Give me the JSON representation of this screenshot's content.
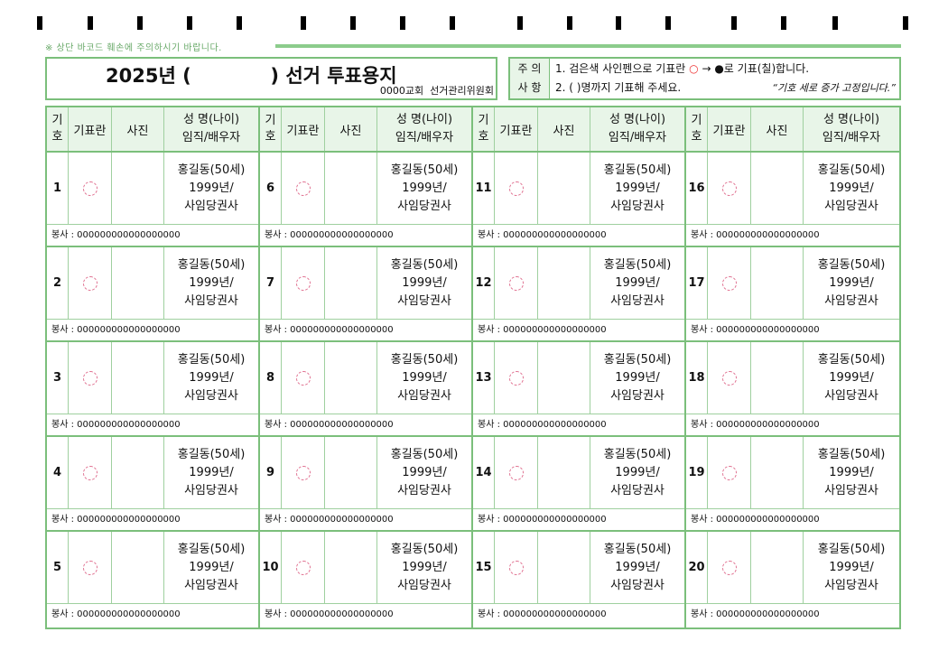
{
  "warning": "※ 상단 바코드 훼손에 주의하시기 바랍니다.",
  "title": "2025년 (            ) 선거 투표용지",
  "organization": "0000교회  선거관리위원회",
  "notice": {
    "label_top": "주 의",
    "label_bottom": "사 항",
    "line1_pre": "1. 검은색 사인펜으로 기표란 ",
    "line1_circle": "○",
    "line1_mid": " → ●로 기표(칠)합니다.",
    "line2": "2. (       )명까지 기표해 주세요.",
    "quote": "“기호 세로 증가 고정입니다.”"
  },
  "header": {
    "num": "기호",
    "mark": "기표란",
    "photo": "사진",
    "name_line1": "성 명(나이)",
    "name_line2": "임직/배우자"
  },
  "colors": {
    "border": "#7bbf7b",
    "header_bg": "#e8f5e8",
    "circle": "#e07090"
  },
  "candidates": [
    {
      "num": "1",
      "name": "홍길동(50세)",
      "year": "1999년/",
      "spouse": "사임당권사",
      "service": "봉사 : 000000000000000000"
    },
    {
      "num": "2",
      "name": "홍길동(50세)",
      "year": "1999년/",
      "spouse": "사임당권사",
      "service": "봉사 : 000000000000000000"
    },
    {
      "num": "3",
      "name": "홍길동(50세)",
      "year": "1999년/",
      "spouse": "사임당권사",
      "service": "봉사 : 000000000000000000"
    },
    {
      "num": "4",
      "name": "홍길동(50세)",
      "year": "1999년/",
      "spouse": "사임당권사",
      "service": "봉사 : 000000000000000000"
    },
    {
      "num": "5",
      "name": "홍길동(50세)",
      "year": "1999년/",
      "spouse": "사임당권사",
      "service": "봉사 : 000000000000000000"
    },
    {
      "num": "6",
      "name": "홍길동(50세)",
      "year": "1999년/",
      "spouse": "사임당권사",
      "service": "봉사 : 000000000000000000"
    },
    {
      "num": "7",
      "name": "홍길동(50세)",
      "year": "1999년/",
      "spouse": "사임당권사",
      "service": "봉사 : 000000000000000000"
    },
    {
      "num": "8",
      "name": "홍길동(50세)",
      "year": "1999년/",
      "spouse": "사임당권사",
      "service": "봉사 : 000000000000000000"
    },
    {
      "num": "9",
      "name": "홍길동(50세)",
      "year": "1999년/",
      "spouse": "사임당권사",
      "service": "봉사 : 000000000000000000"
    },
    {
      "num": "10",
      "name": "홍길동(50세)",
      "year": "1999년/",
      "spouse": "사임당권사",
      "service": "봉사 : 000000000000000000"
    },
    {
      "num": "11",
      "name": "홍길동(50세)",
      "year": "1999년/",
      "spouse": "사임당권사",
      "service": "봉사 : 000000000000000000"
    },
    {
      "num": "12",
      "name": "홍길동(50세)",
      "year": "1999년/",
      "spouse": "사임당권사",
      "service": "봉사 : 000000000000000000"
    },
    {
      "num": "13",
      "name": "홍길동(50세)",
      "year": "1999년/",
      "spouse": "사임당권사",
      "service": "봉사 : 000000000000000000"
    },
    {
      "num": "14",
      "name": "홍길동(50세)",
      "year": "1999년/",
      "spouse": "사임당권사",
      "service": "봉사 : 000000000000000000"
    },
    {
      "num": "15",
      "name": "홍길동(50세)",
      "year": "1999년/",
      "spouse": "사임당권사",
      "service": "봉사 : 000000000000000000"
    },
    {
      "num": "16",
      "name": "홍길동(50세)",
      "year": "1999년/",
      "spouse": "사임당권사",
      "service": "봉사 : 000000000000000000"
    },
    {
      "num": "17",
      "name": "홍길동(50세)",
      "year": "1999년/",
      "spouse": "사임당권사",
      "service": "봉사 : 000000000000000000"
    },
    {
      "num": "18",
      "name": "홍길동(50세)",
      "year": "1999년/",
      "spouse": "사임당권사",
      "service": "봉사 : 000000000000000000"
    },
    {
      "num": "19",
      "name": "홍길동(50세)",
      "year": "1999년/",
      "spouse": "사임당권사",
      "service": "봉사 : 000000000000000000"
    },
    {
      "num": "20",
      "name": "홍길동(50세)",
      "year": "1999년/",
      "spouse": "사임당권사",
      "service": "봉사 : 000000000000000000"
    }
  ]
}
